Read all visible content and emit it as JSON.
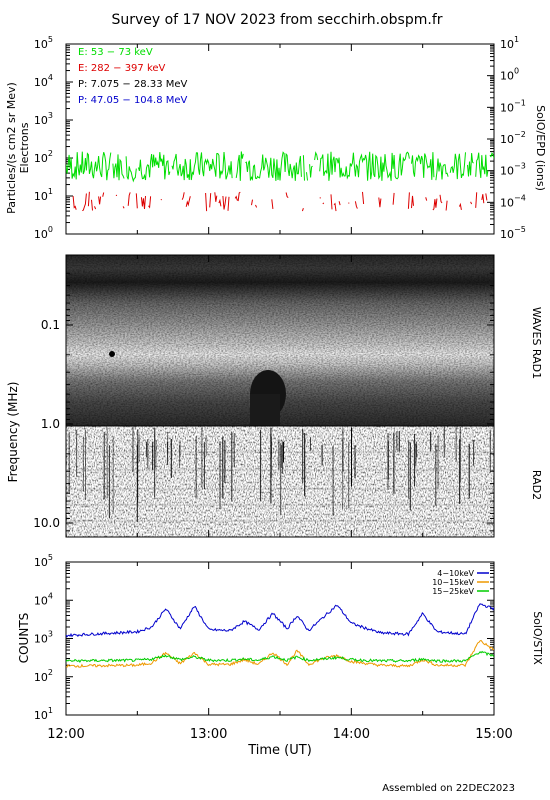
{
  "title": "Survey of 17 NOV 2023 from secchirh.obspm.fr",
  "footer": "Assembled on 22DEC2023",
  "xaxis": {
    "label": "Time (UT)",
    "ticks": [
      "12:00",
      "13:00",
      "14:00",
      "15:00"
    ],
    "range_hours": [
      12,
      15
    ]
  },
  "panel_epd": {
    "ylabel_line1": "Particles/(s cm2 sr Mev)",
    "ylabel_line2": "Electrons",
    "right_label": "SolO/EPD (ions)",
    "left_log_range": [
      0,
      5
    ],
    "right_log_range": [
      -5,
      1
    ],
    "left_ticks": [
      {
        "b": "10",
        "e": "0"
      },
      {
        "b": "10",
        "e": "1"
      },
      {
        "b": "10",
        "e": "2"
      },
      {
        "b": "10",
        "e": "3"
      },
      {
        "b": "10",
        "e": "4"
      },
      {
        "b": "10",
        "e": "5"
      }
    ],
    "right_ticks": [
      {
        "b": "10",
        "e": "−5"
      },
      {
        "b": "10",
        "e": "−4"
      },
      {
        "b": "10",
        "e": "−3"
      },
      {
        "b": "10",
        "e": "−2"
      },
      {
        "b": "10",
        "e": "−1"
      },
      {
        "b": "10",
        "e": "0"
      },
      {
        "b": "10",
        "e": "1"
      }
    ],
    "legend": [
      {
        "text": "E: 53 − 73 keV",
        "color": "#00dd00"
      },
      {
        "text": "E: 282 − 397 keV",
        "color": "#dd0000"
      },
      {
        "text": "P: 7.075 − 28.33 MeV",
        "color": "#000000"
      },
      {
        "text": "P: 47.05 − 104.8 MeV",
        "color": "#0000cc"
      }
    ]
  },
  "panel_waves": {
    "ylabel": "Frequency (MHz)",
    "rad1_label": "WAVES RAD1",
    "rad2_label": "RAD2",
    "ticks": [
      "0.1",
      "1.0",
      "10.0"
    ],
    "freq_range_mhz": [
      0.02,
      16
    ]
  },
  "panel_stix": {
    "ylabel": "COUNTS",
    "right_label": "SolO/STIX",
    "ticks": [
      {
        "b": "10",
        "e": "1"
      },
      {
        "b": "10",
        "e": "2"
      },
      {
        "b": "10",
        "e": "3"
      },
      {
        "b": "10",
        "e": "4"
      },
      {
        "b": "10",
        "e": "5"
      }
    ],
    "log_range": [
      1,
      5
    ]
  },
  "chart_data": [
    {
      "type": "line",
      "title": "Survey of 17 NOV 2023 from secchirh.obspm.fr",
      "xlabel": "Time (UT)",
      "ylabel": "Particles/(s cm2 sr Mev) Electrons",
      "yscale": "log",
      "ylim": [
        1,
        100000
      ],
      "xlim": [
        "12:00",
        "15:00"
      ],
      "legend_placement": "top-left",
      "series": [
        {
          "name": "E: 53 − 73 keV",
          "color": "#00dd00",
          "baseline": 60,
          "low": 25,
          "high": 150
        },
        {
          "name": "E: 282 − 397 keV",
          "color": "#dd0000",
          "baseline": 6,
          "low": 4,
          "high": 13,
          "gappy": true
        }
      ]
    },
    {
      "type": "heatmap",
      "ylabel": "Frequency (MHz)",
      "yscale": "log",
      "ylim": [
        0.02,
        16
      ],
      "panels": [
        "WAVES RAD1",
        "RAD2"
      ]
    },
    {
      "type": "line",
      "ylabel": "COUNTS",
      "yscale": "log",
      "ylim": [
        10,
        100000
      ],
      "xlim": [
        "12:00",
        "15:00"
      ],
      "legend_placement": "top-right",
      "x": [
        12.0,
        12.5,
        12.6,
        12.7,
        12.8,
        12.9,
        13.0,
        13.15,
        13.25,
        13.35,
        13.45,
        13.55,
        13.62,
        13.7,
        13.8,
        13.9,
        14.0,
        14.2,
        14.4,
        14.5,
        14.6,
        14.8,
        14.9,
        15.0
      ],
      "series": [
        {
          "name": "4−10keV",
          "color": "#0000cc",
          "values": [
            1200,
            1500,
            2000,
            6000,
            1800,
            7000,
            1700,
            1600,
            2800,
            1700,
            4500,
            1800,
            4000,
            1600,
            3500,
            7500,
            2500,
            1400,
            1300,
            4500,
            1500,
            1300,
            8000,
            6000
          ]
        },
        {
          "name": "10−15keV",
          "color": "#ee9900",
          "values": [
            190,
            200,
            230,
            420,
            220,
            420,
            210,
            210,
            280,
            210,
            430,
            210,
            480,
            210,
            300,
            360,
            250,
            200,
            190,
            280,
            200,
            200,
            900,
            500
          ]
        },
        {
          "name": "15−25keV",
          "color": "#00cc00",
          "values": [
            260,
            270,
            290,
            360,
            280,
            330,
            270,
            270,
            290,
            270,
            340,
            270,
            330,
            270,
            290,
            320,
            280,
            260,
            260,
            290,
            260,
            260,
            450,
            350
          ]
        }
      ]
    }
  ]
}
